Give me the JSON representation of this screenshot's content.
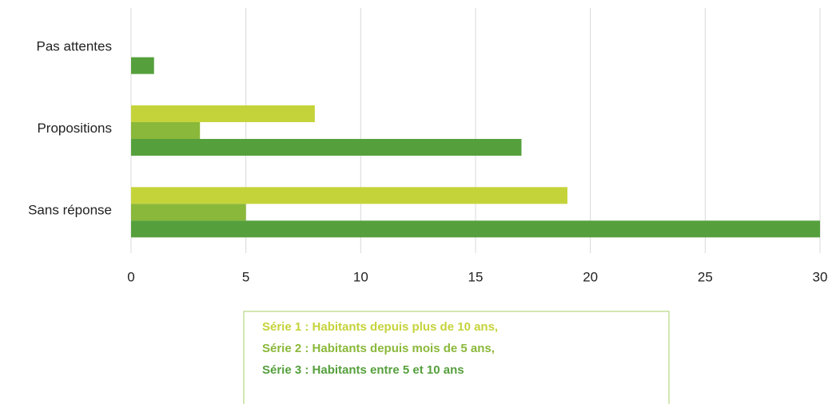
{
  "chart_data": {
    "type": "bar",
    "categories": [
      "Pas attentes",
      "Propositions",
      "Sans réponse"
    ],
    "series": [
      {
        "name": "Série 1 : Habitants depuis plus de 10 ans,",
        "color": "#c5d33a",
        "values": [
          0,
          8,
          19
        ]
      },
      {
        "name": "Série 2 : Habitants depuis mois de 5 ans,",
        "color": "#8ab83a",
        "values": [
          0,
          3,
          5
        ]
      },
      {
        "name": "Série 3 : Habitants entre 5 et 10 ans",
        "color": "#55a03c",
        "values": [
          1,
          17,
          30
        ]
      }
    ],
    "xlim": [
      0,
      30
    ],
    "xticks": [
      0,
      5,
      10,
      15,
      20,
      25,
      30
    ],
    "grid": true
  }
}
